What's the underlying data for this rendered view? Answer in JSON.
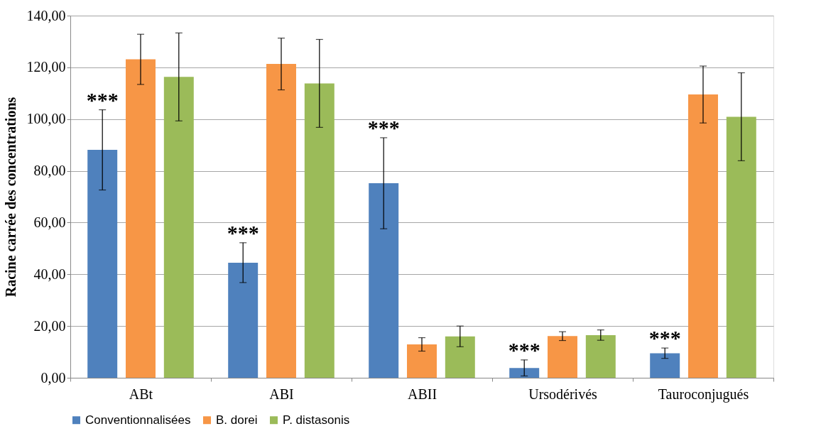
{
  "chart_data": {
    "type": "bar",
    "ylabel": "Racine carrée des concentrations",
    "categories": [
      "ABt",
      "ABI",
      "ABII",
      "Ursodérivés",
      "Tauroconjugués"
    ],
    "series": [
      {
        "name": "Conventionnalisées",
        "color": "#4f81bd",
        "values": [
          88.1,
          44.5,
          75.2,
          3.8,
          9.5
        ],
        "errors": [
          15.5,
          7.7,
          17.6,
          3.1,
          2
        ]
      },
      {
        "name": "B. dorei",
        "color": "#f79646",
        "values": [
          123.1,
          121.3,
          12.9,
          16.1,
          109.5
        ],
        "errors": [
          9.7,
          10,
          2.6,
          1.7,
          11
        ]
      },
      {
        "name": "P. distasonis",
        "color": "#9bbb59",
        "values": [
          116.3,
          113.8,
          16,
          16.5,
          100.9
        ],
        "errors": [
          17,
          17,
          4,
          2,
          17
        ]
      }
    ],
    "ylim": [
      0,
      140
    ],
    "yticks": [
      {
        "value": 0,
        "label": "0,00"
      },
      {
        "value": 20,
        "label": "20,00"
      },
      {
        "value": 40,
        "label": "40,00"
      },
      {
        "value": 60,
        "label": "60,00"
      },
      {
        "value": 80,
        "label": "80,00"
      },
      {
        "value": 100,
        "label": "100,00"
      },
      {
        "value": 120,
        "label": "120,00"
      },
      {
        "value": 140,
        "label": "140,00"
      }
    ],
    "annotations": [
      "***",
      "***",
      "***",
      "***",
      "***"
    ],
    "grid": "y",
    "legend": "bottom"
  }
}
